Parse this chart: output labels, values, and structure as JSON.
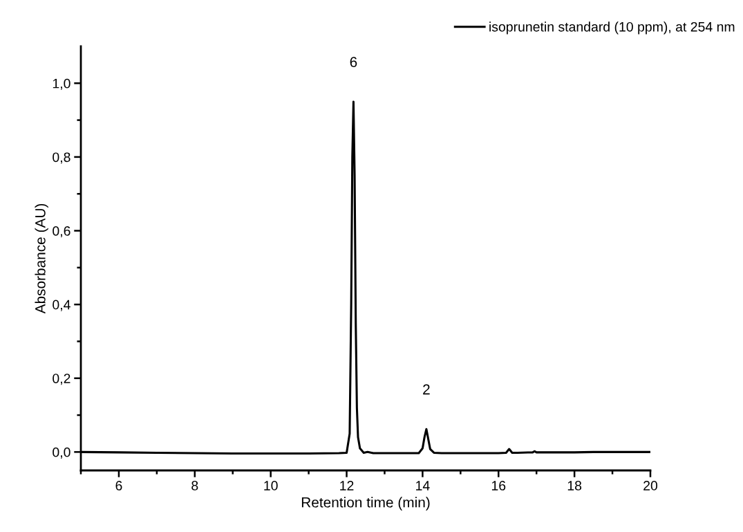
{
  "chart_data": {
    "type": "line",
    "xlabel": "Retention time (min)",
    "ylabel": "Absorbance (AU)",
    "xlim": [
      5,
      20
    ],
    "ylim": [
      -0.05,
      1.1
    ],
    "xticks": [
      {
        "value": 5,
        "label": null
      },
      6,
      {
        "value": 7,
        "label": null
      },
      8,
      {
        "value": 9,
        "label": null
      },
      10,
      {
        "value": 11,
        "label": null
      },
      12,
      {
        "value": 13,
        "label": null
      },
      14,
      {
        "value": 15,
        "label": null
      },
      16,
      {
        "value": 17,
        "label": null
      },
      18,
      {
        "value": 19,
        "label": null
      },
      20
    ],
    "yticks": [
      {
        "value": 0.0,
        "label": "0,0"
      },
      {
        "value": 0.1,
        "label": null
      },
      {
        "value": 0.2,
        "label": "0,2"
      },
      {
        "value": 0.3,
        "label": null
      },
      {
        "value": 0.4,
        "label": "0,4"
      },
      {
        "value": 0.5,
        "label": null
      },
      {
        "value": 0.6,
        "label": "0,6"
      },
      {
        "value": 0.7,
        "label": null
      },
      {
        "value": 0.8,
        "label": "0,8"
      },
      {
        "value": 0.9,
        "label": null
      },
      {
        "value": 1.0,
        "label": "1,0"
      }
    ],
    "grid": false,
    "legend": "top right",
    "marker": "none",
    "line_style": "solid",
    "annotations": [
      {
        "text": "6",
        "x": 12.18,
        "y": 0.95
      },
      {
        "text": "2",
        "x": 14.1,
        "y": 0.062
      }
    ],
    "series": [
      {
        "name": "isoprunetin standard (10 ppm), at 254 nm",
        "color": "#000000",
        "x": [
          5,
          6,
          7,
          8,
          9,
          10,
          11,
          11.8,
          12.0,
          12.08,
          12.12,
          12.15,
          12.18,
          12.21,
          12.24,
          12.27,
          12.3,
          12.35,
          12.45,
          12.55,
          12.7,
          13.0,
          13.5,
          13.9,
          14.0,
          14.05,
          14.1,
          14.15,
          14.2,
          14.3,
          14.5,
          15.0,
          15.5,
          16.0,
          16.2,
          16.28,
          16.36,
          16.5,
          16.9,
          16.95,
          17.0,
          17.5,
          18.0,
          18.5,
          19.0,
          19.5,
          20.0
        ],
        "values": [
          0.0,
          -0.001,
          -0.002,
          -0.003,
          -0.004,
          -0.004,
          -0.004,
          -0.003,
          -0.002,
          0.05,
          0.4,
          0.8,
          0.95,
          0.75,
          0.35,
          0.12,
          0.04,
          0.01,
          -0.002,
          0.0,
          -0.003,
          -0.003,
          -0.003,
          -0.003,
          0.01,
          0.04,
          0.062,
          0.035,
          0.008,
          -0.002,
          -0.003,
          -0.003,
          -0.003,
          -0.003,
          -0.002,
          0.008,
          -0.002,
          -0.002,
          -0.001,
          0.002,
          -0.001,
          -0.001,
          -0.001,
          0.0,
          0.0,
          0.0,
          0.0
        ]
      }
    ]
  }
}
